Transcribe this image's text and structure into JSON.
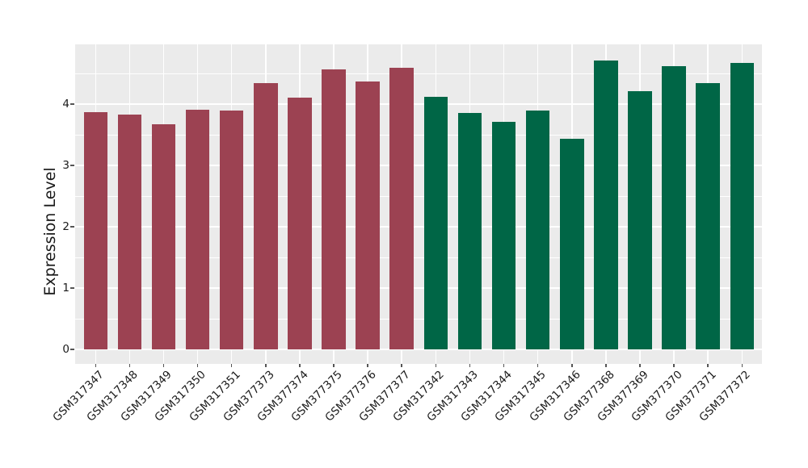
{
  "palette": {
    "figure_background": "#FFFFFF",
    "panel_background": "#EBEBEB",
    "gridline": "#FFFFFF",
    "tick_mark": "#555555",
    "axis_text": "#1A1A1A",
    "group1_color": "#9C4252",
    "group2_color": "#006646"
  },
  "y_axis": {
    "title": "Expression Level",
    "tick_labels": [
      "0",
      "1",
      "2",
      "3",
      "4"
    ]
  },
  "chart_data": {
    "type": "bar",
    "title": "",
    "xlabel": "",
    "ylabel": "Expression Level",
    "ylim": [
      -0.25,
      5.0
    ],
    "yticks": [
      0,
      1,
      2,
      3,
      4
    ],
    "yminor": [
      0.5,
      1.5,
      2.5,
      3.5,
      4.5
    ],
    "grid": "on",
    "legend": "none",
    "categories": [
      "GSM317347",
      "GSM317348",
      "GSM317349",
      "GSM317350",
      "GSM317351",
      "GSM377373",
      "GSM377374",
      "GSM377375",
      "GSM377376",
      "GSM377377",
      "GSM317342",
      "GSM317343",
      "GSM317344",
      "GSM317345",
      "GSM317346",
      "GSM377368",
      "GSM377369",
      "GSM377370",
      "GSM377371",
      "GSM377372"
    ],
    "values": [
      3.87,
      3.83,
      3.67,
      3.91,
      3.89,
      4.34,
      4.11,
      4.57,
      4.37,
      4.59,
      4.12,
      3.86,
      3.71,
      3.9,
      3.43,
      4.71,
      4.21,
      4.62,
      4.34,
      4.67
    ],
    "bar_colors": [
      "#9C4252",
      "#9C4252",
      "#9C4252",
      "#9C4252",
      "#9C4252",
      "#9C4252",
      "#9C4252",
      "#9C4252",
      "#9C4252",
      "#9C4252",
      "#006646",
      "#006646",
      "#006646",
      "#006646",
      "#006646",
      "#006646",
      "#006646",
      "#006646",
      "#006646",
      "#006646"
    ],
    "color_groups": [
      {
        "color": "#9C4252",
        "categories": [
          "GSM317347",
          "GSM317348",
          "GSM317349",
          "GSM317350",
          "GSM317351",
          "GSM377373",
          "GSM377374",
          "GSM377375",
          "GSM377376",
          "GSM377377"
        ]
      },
      {
        "color": "#006646",
        "categories": [
          "GSM317342",
          "GSM317343",
          "GSM317344",
          "GSM317345",
          "GSM317346",
          "GSM377368",
          "GSM377369",
          "GSM377370",
          "GSM377371",
          "GSM377372"
        ]
      }
    ]
  }
}
